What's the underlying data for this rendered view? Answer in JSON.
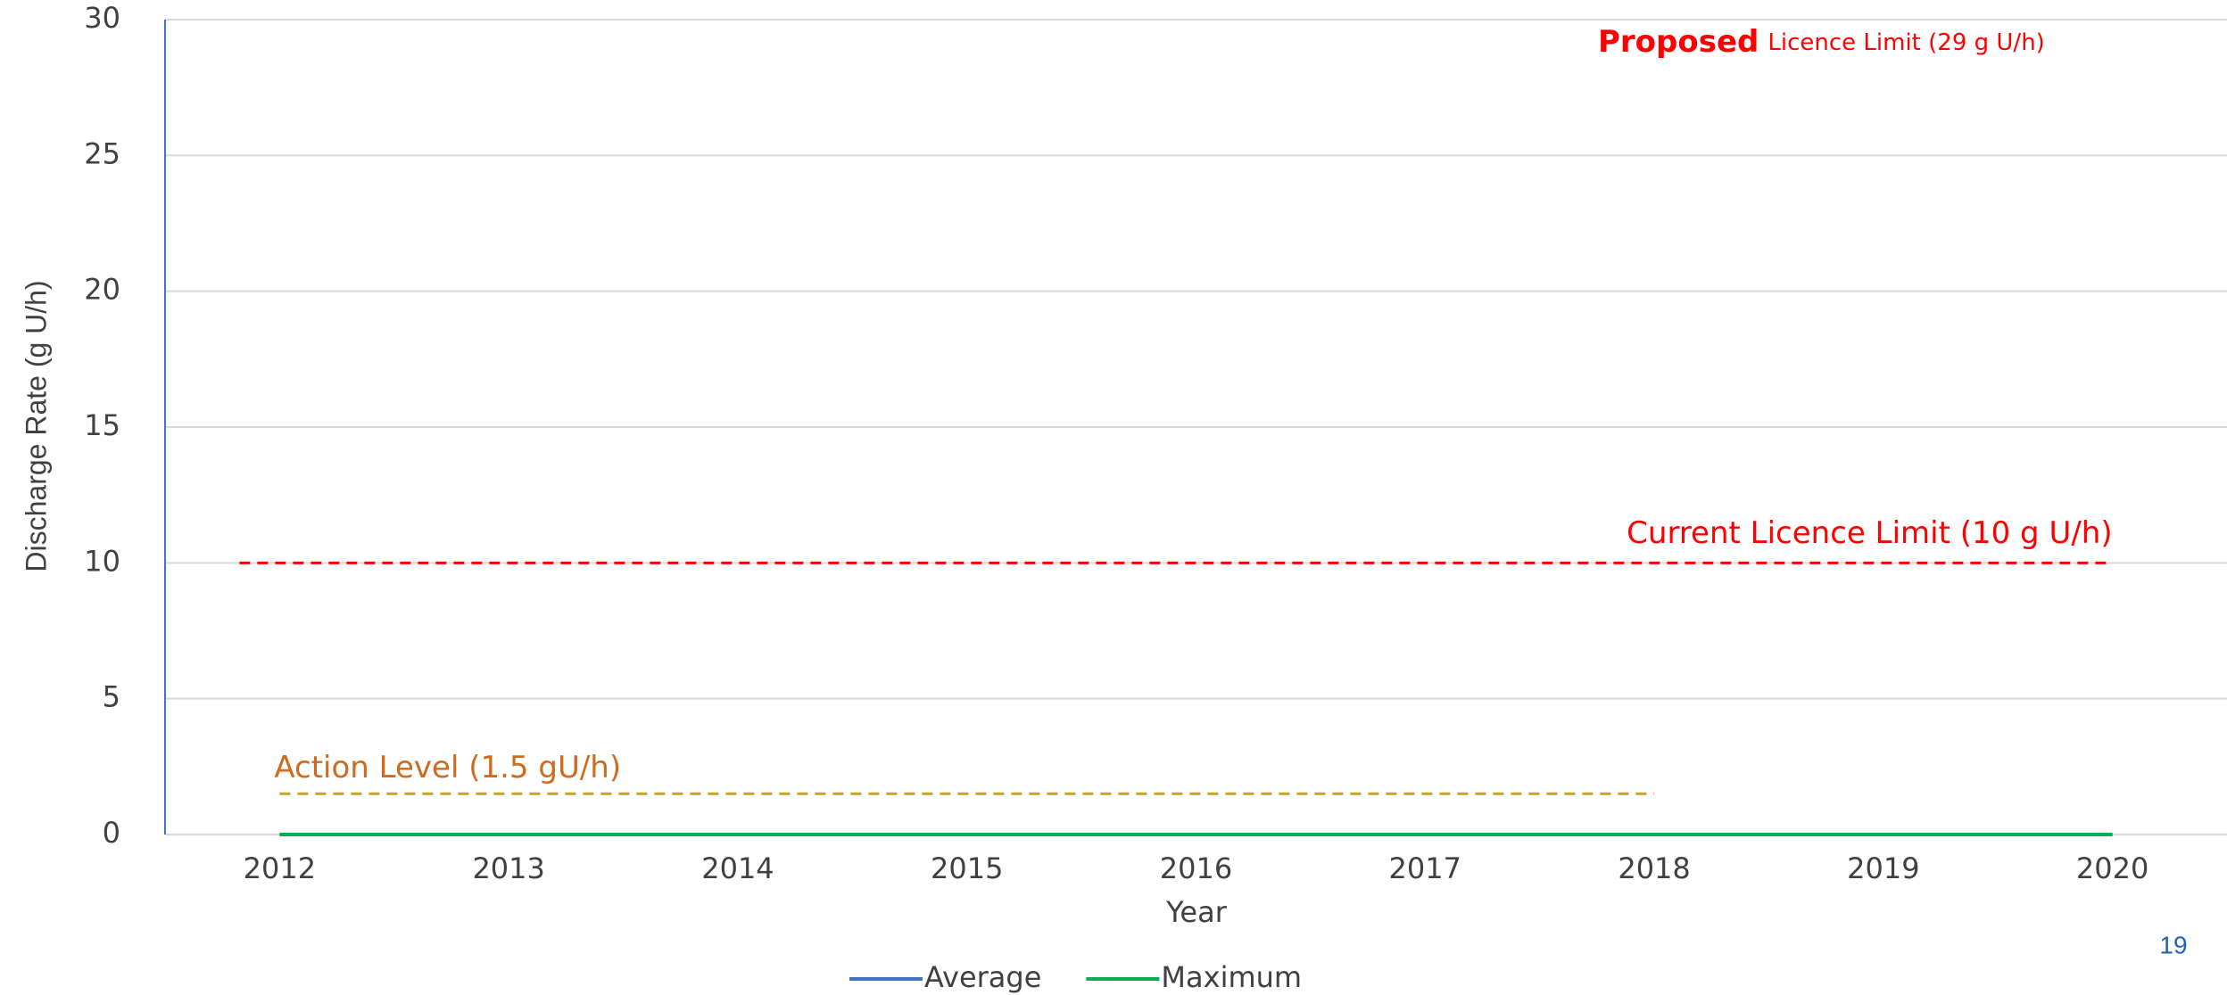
{
  "chart_data": {
    "type": "line",
    "categories": [
      "2012",
      "2013",
      "2014",
      "2015",
      "2016",
      "2017",
      "2018",
      "2019",
      "2020"
    ],
    "series": [
      {
        "name": "Average",
        "color": "#4472c4",
        "values": [
          0,
          0,
          0,
          0,
          0,
          0,
          0,
          0,
          0
        ]
      },
      {
        "name": "Maximum",
        "color": "#00b050",
        "values": [
          0,
          0,
          0,
          0,
          0,
          0,
          0,
          0,
          0
        ]
      }
    ],
    "ylim": [
      0,
      30
    ],
    "yticks": [
      0,
      5,
      10,
      15,
      20,
      25,
      30
    ],
    "grid": true,
    "xlabel": "Year",
    "ylabel": "Discharge Rate (g U/h)",
    "reference_lines": [
      {
        "label": "Current Licence Limit (10 g U/h)",
        "value": 10,
        "color": "#ff0000",
        "from": "2012",
        "to": "2020"
      },
      {
        "label": "Action Level (1.5 gU/h)",
        "value": 1.5,
        "color": "#c9a227",
        "label_color": "#d06a1c",
        "from": "2012",
        "to": "2018"
      }
    ],
    "annotations": [
      {
        "parts": [
          "Proposed",
          "Licence Limit (29 g U/h)"
        ],
        "color": "#ff0000"
      }
    ],
    "page_number": "19"
  }
}
